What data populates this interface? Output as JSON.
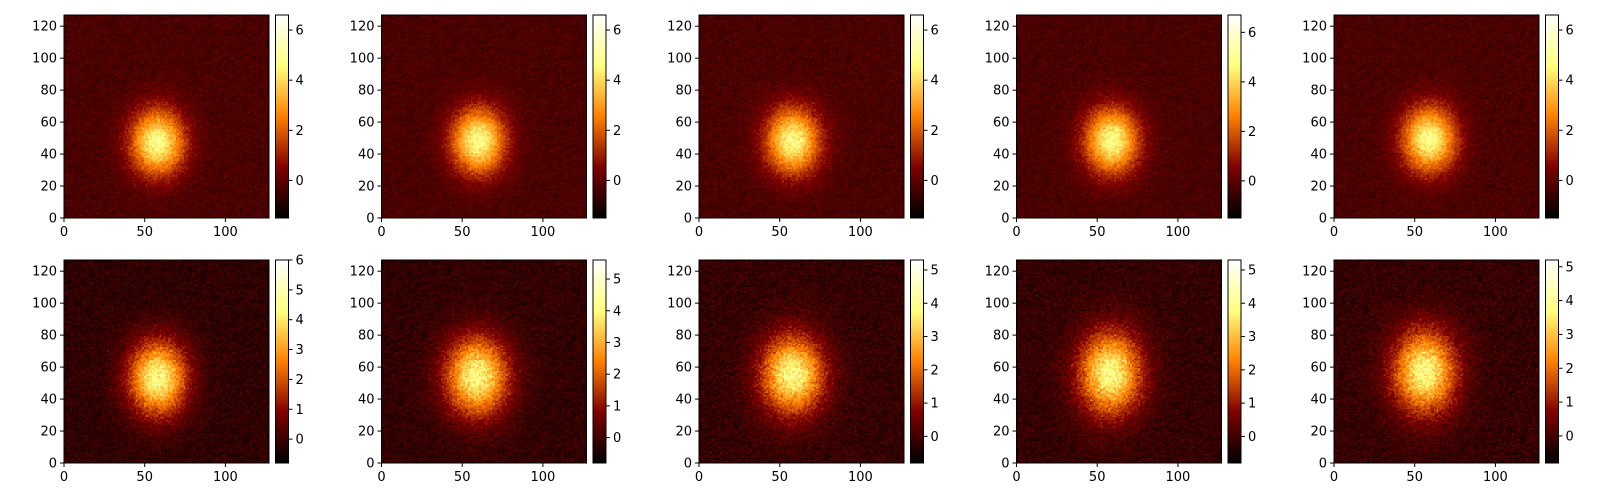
{
  "figure": {
    "description_colormap": "afmhot"
  },
  "chart_data": [
    {
      "type": "heatmap",
      "title": "",
      "xlabel": "",
      "ylabel": "",
      "x_ticks": [
        0,
        50,
        100
      ],
      "y_ticks": [
        0,
        20,
        40,
        60,
        80,
        100,
        120
      ],
      "xlim": [
        0,
        127
      ],
      "ylim": [
        0,
        127
      ],
      "colorbar": {
        "ticks": [
          0,
          2,
          4,
          6
        ],
        "range": [
          -1.5,
          6.6
        ],
        "colormap": "afmhot"
      },
      "blob": {
        "center_x": 58,
        "center_y": 47,
        "sigma_x": 13,
        "sigma_y": 16,
        "peak": 6.5
      }
    },
    {
      "type": "heatmap",
      "title": "",
      "xlabel": "",
      "ylabel": "",
      "x_ticks": [
        0,
        50,
        100
      ],
      "y_ticks": [
        0,
        20,
        40,
        60,
        80,
        100,
        120
      ],
      "xlim": [
        0,
        127
      ],
      "ylim": [
        0,
        127
      ],
      "colorbar": {
        "ticks": [
          0,
          2,
          4,
          6
        ],
        "range": [
          -1.5,
          6.6
        ],
        "colormap": "afmhot"
      },
      "blob": {
        "center_x": 60,
        "center_y": 48,
        "sigma_x": 13,
        "sigma_y": 16,
        "peak": 6.5
      }
    },
    {
      "type": "heatmap",
      "title": "",
      "xlabel": "",
      "ylabel": "",
      "x_ticks": [
        0,
        50,
        100
      ],
      "y_ticks": [
        0,
        20,
        40,
        60,
        80,
        100,
        120
      ],
      "xlim": [
        0,
        127
      ],
      "ylim": [
        0,
        127
      ],
      "colorbar": {
        "ticks": [
          0,
          2,
          4,
          6
        ],
        "range": [
          -1.5,
          6.6
        ],
        "colormap": "afmhot"
      },
      "blob": {
        "center_x": 58,
        "center_y": 48,
        "sigma_x": 13,
        "sigma_y": 16,
        "peak": 6.5
      }
    },
    {
      "type": "heatmap",
      "title": "",
      "xlabel": "",
      "ylabel": "",
      "x_ticks": [
        0,
        50,
        100
      ],
      "y_ticks": [
        0,
        20,
        40,
        60,
        80,
        100,
        120
      ],
      "xlim": [
        0,
        127
      ],
      "ylim": [
        0,
        127
      ],
      "colorbar": {
        "ticks": [
          0,
          2,
          4,
          6
        ],
        "range": [
          -1.5,
          6.7
        ],
        "colormap": "afmhot"
      },
      "blob": {
        "center_x": 59,
        "center_y": 48,
        "sigma_x": 13,
        "sigma_y": 16,
        "peak": 6.6
      }
    },
    {
      "type": "heatmap",
      "title": "",
      "xlabel": "",
      "ylabel": "",
      "x_ticks": [
        0,
        50,
        100
      ],
      "y_ticks": [
        0,
        20,
        40,
        60,
        80,
        100,
        120
      ],
      "xlim": [
        0,
        127
      ],
      "ylim": [
        0,
        127
      ],
      "colorbar": {
        "ticks": [
          0,
          2,
          4,
          6
        ],
        "range": [
          -1.5,
          6.6
        ],
        "colormap": "afmhot"
      },
      "blob": {
        "center_x": 59,
        "center_y": 49,
        "sigma_x": 13,
        "sigma_y": 16,
        "peak": 6.5
      }
    },
    {
      "type": "heatmap",
      "title": "",
      "xlabel": "",
      "ylabel": "",
      "x_ticks": [
        0,
        50,
        100
      ],
      "y_ticks": [
        0,
        20,
        40,
        60,
        80,
        100,
        120
      ],
      "xlim": [
        0,
        127
      ],
      "ylim": [
        0,
        127
      ],
      "colorbar": {
        "ticks": [
          0,
          1,
          2,
          3,
          4,
          5,
          6
        ],
        "range": [
          -0.8,
          6.0
        ],
        "colormap": "afmhot"
      },
      "blob": {
        "center_x": 58,
        "center_y": 53,
        "sigma_x": 14,
        "sigma_y": 18,
        "peak": 5.9
      }
    },
    {
      "type": "heatmap",
      "title": "",
      "xlabel": "",
      "ylabel": "",
      "x_ticks": [
        0,
        50,
        100
      ],
      "y_ticks": [
        0,
        20,
        40,
        60,
        80,
        100,
        120
      ],
      "xlim": [
        0,
        127
      ],
      "ylim": [
        0,
        127
      ],
      "colorbar": {
        "ticks": [
          0,
          1,
          2,
          3,
          4,
          5
        ],
        "range": [
          -0.8,
          5.6
        ],
        "colormap": "afmhot"
      },
      "blob": {
        "center_x": 59,
        "center_y": 54,
        "sigma_x": 15,
        "sigma_y": 19,
        "peak": 5.5
      }
    },
    {
      "type": "heatmap",
      "title": "",
      "xlabel": "",
      "ylabel": "",
      "x_ticks": [
        0,
        50,
        100
      ],
      "y_ticks": [
        0,
        20,
        40,
        60,
        80,
        100,
        120
      ],
      "xlim": [
        0,
        127
      ],
      "ylim": [
        0,
        127
      ],
      "colorbar": {
        "ticks": [
          0,
          1,
          2,
          3,
          4,
          5
        ],
        "range": [
          -0.8,
          5.3
        ],
        "colormap": "afmhot"
      },
      "blob": {
        "center_x": 58,
        "center_y": 55,
        "sigma_x": 15,
        "sigma_y": 19,
        "peak": 5.2
      }
    },
    {
      "type": "heatmap",
      "title": "",
      "xlabel": "",
      "ylabel": "",
      "x_ticks": [
        0,
        50,
        100
      ],
      "y_ticks": [
        0,
        20,
        40,
        60,
        80,
        100,
        120
      ],
      "xlim": [
        0,
        127
      ],
      "ylim": [
        0,
        127
      ],
      "colorbar": {
        "ticks": [
          0,
          1,
          2,
          3,
          4,
          5
        ],
        "range": [
          -0.8,
          5.3
        ],
        "colormap": "afmhot"
      },
      "blob": {
        "center_x": 58,
        "center_y": 56,
        "sigma_x": 15,
        "sigma_y": 20,
        "peak": 5.2
      }
    },
    {
      "type": "heatmap",
      "title": "",
      "xlabel": "",
      "ylabel": "",
      "x_ticks": [
        0,
        50,
        100
      ],
      "y_ticks": [
        0,
        20,
        40,
        60,
        80,
        100,
        120
      ],
      "xlim": [
        0,
        127
      ],
      "ylim": [
        0,
        127
      ],
      "colorbar": {
        "ticks": [
          0,
          1,
          2,
          3,
          4,
          5
        ],
        "range": [
          -0.8,
          5.2
        ],
        "colormap": "afmhot"
      },
      "blob": {
        "center_x": 56,
        "center_y": 57,
        "sigma_x": 15,
        "sigma_y": 20,
        "peak": 5.1
      }
    }
  ]
}
